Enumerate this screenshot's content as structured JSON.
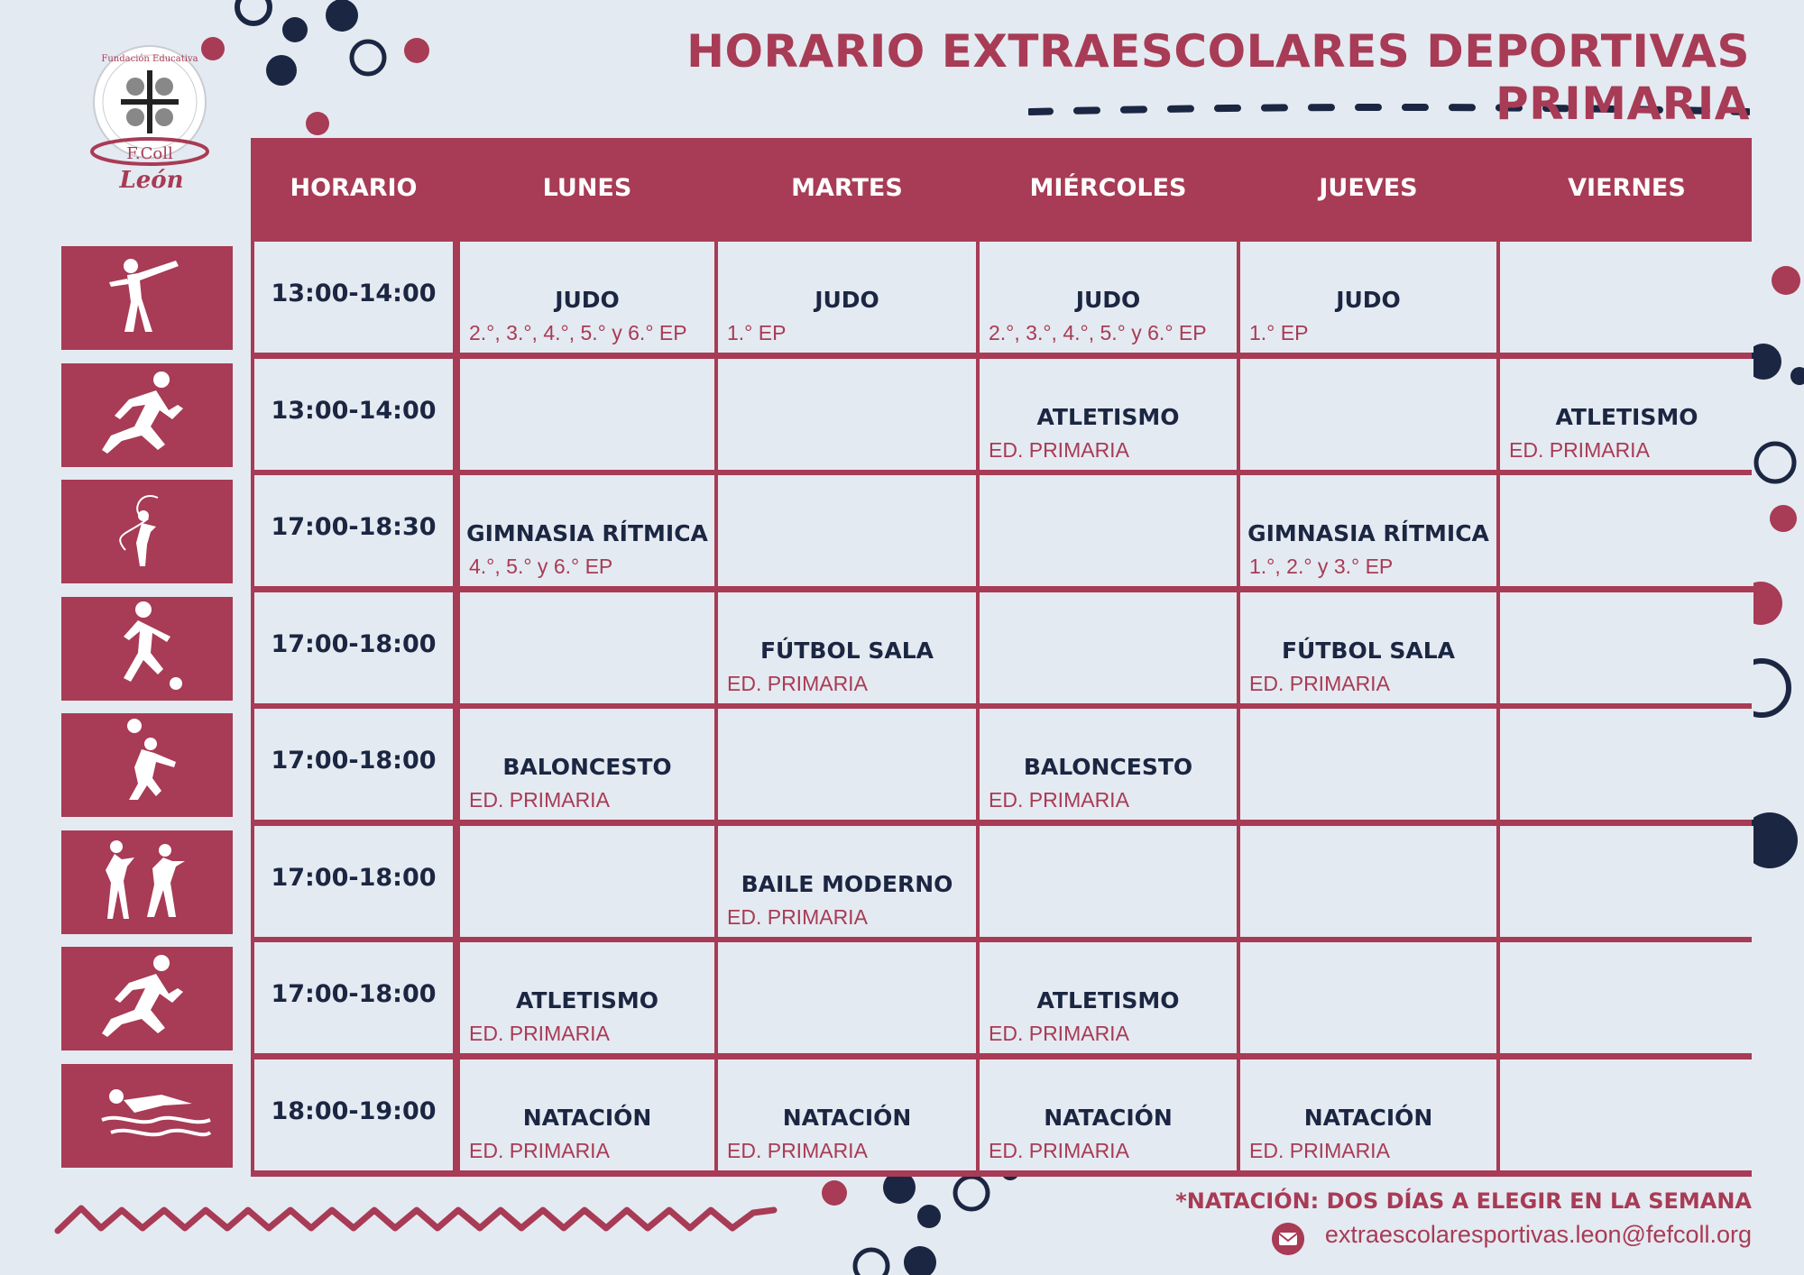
{
  "title": "HORARIO EXTRAESCOLARES DEPORTIVAS PRIMARIA",
  "logo": {
    "arc_text": "Fundación Educativa",
    "brand": "F.Coll",
    "city": "León"
  },
  "colors": {
    "accent": "#a83b55",
    "navy": "#1b2642",
    "background": "#e4eaf1"
  },
  "headers": [
    "HORARIO",
    "LUNES",
    "MARTES",
    "MIÉRCOLES",
    "JUEVES",
    "VIERNES"
  ],
  "rows": [
    {
      "icon": "karate-icon",
      "time": "13:00-14:00",
      "cells": [
        {
          "activity": "JUDO",
          "group": "2.°, 3.°, 4.°, 5.° y 6.° EP"
        },
        {
          "activity": "JUDO",
          "group": "1.° EP"
        },
        {
          "activity": "JUDO",
          "group": "2.°, 3.°, 4.°, 5.° y 6.° EP"
        },
        {
          "activity": "JUDO",
          "group": "1.° EP"
        },
        {
          "activity": "",
          "group": ""
        }
      ]
    },
    {
      "icon": "runner-icon",
      "time": "13:00-14:00",
      "cells": [
        {
          "activity": "",
          "group": ""
        },
        {
          "activity": "",
          "group": ""
        },
        {
          "activity": "ATLETISMO",
          "group": "ED. PRIMARIA"
        },
        {
          "activity": "",
          "group": ""
        },
        {
          "activity": "ATLETISMO",
          "group": "ED. PRIMARIA"
        }
      ]
    },
    {
      "icon": "rhythmic-gymnast-icon",
      "time": "17:00-18:30",
      "cells": [
        {
          "activity": "GIMNASIA RÍTMICA",
          "group": "4.°, 5.° y 6.° EP"
        },
        {
          "activity": "",
          "group": ""
        },
        {
          "activity": "",
          "group": ""
        },
        {
          "activity": "GIMNASIA RÍTMICA",
          "group": "1.°, 2.° y 3.° EP"
        },
        {
          "activity": "",
          "group": ""
        }
      ]
    },
    {
      "icon": "soccer-player-icon",
      "time": "17:00-18:00",
      "cells": [
        {
          "activity": "",
          "group": ""
        },
        {
          "activity": "FÚTBOL SALA",
          "group": "ED. PRIMARIA"
        },
        {
          "activity": "",
          "group": ""
        },
        {
          "activity": "FÚTBOL SALA",
          "group": "ED. PRIMARIA"
        },
        {
          "activity": "",
          "group": ""
        }
      ]
    },
    {
      "icon": "basketball-player-icon",
      "time": "17:00-18:00",
      "cells": [
        {
          "activity": "BALONCESTO",
          "group": "ED. PRIMARIA"
        },
        {
          "activity": "",
          "group": ""
        },
        {
          "activity": "BALONCESTO",
          "group": "ED. PRIMARIA"
        },
        {
          "activity": "",
          "group": ""
        },
        {
          "activity": "",
          "group": ""
        }
      ]
    },
    {
      "icon": "dancers-icon",
      "time": "17:00-18:00",
      "cells": [
        {
          "activity": "",
          "group": ""
        },
        {
          "activity": "BAILE MODERNO",
          "group": "ED. PRIMARIA"
        },
        {
          "activity": "",
          "group": ""
        },
        {
          "activity": "",
          "group": ""
        },
        {
          "activity": "",
          "group": ""
        }
      ]
    },
    {
      "icon": "runner-icon",
      "time": "17:00-18:00",
      "cells": [
        {
          "activity": "ATLETISMO",
          "group": "ED. PRIMARIA"
        },
        {
          "activity": "",
          "group": ""
        },
        {
          "activity": "ATLETISMO",
          "group": "ED. PRIMARIA"
        },
        {
          "activity": "",
          "group": ""
        },
        {
          "activity": "",
          "group": ""
        }
      ]
    },
    {
      "icon": "swimmer-icon",
      "time": "18:00-19:00",
      "cells": [
        {
          "activity": "NATACIÓN",
          "group": "ED. PRIMARIA"
        },
        {
          "activity": "NATACIÓN",
          "group": "ED. PRIMARIA"
        },
        {
          "activity": "NATACIÓN",
          "group": "ED. PRIMARIA"
        },
        {
          "activity": "NATACIÓN",
          "group": "ED. PRIMARIA"
        },
        {
          "activity": "",
          "group": ""
        }
      ]
    }
  ],
  "footer": {
    "note": "*NATACIÓN: DOS DÍAS A ELEGIR EN LA SEMANA",
    "email": "extraescolaresportivas.leon@fefcoll.org",
    "email_icon": "mail-icon"
  }
}
